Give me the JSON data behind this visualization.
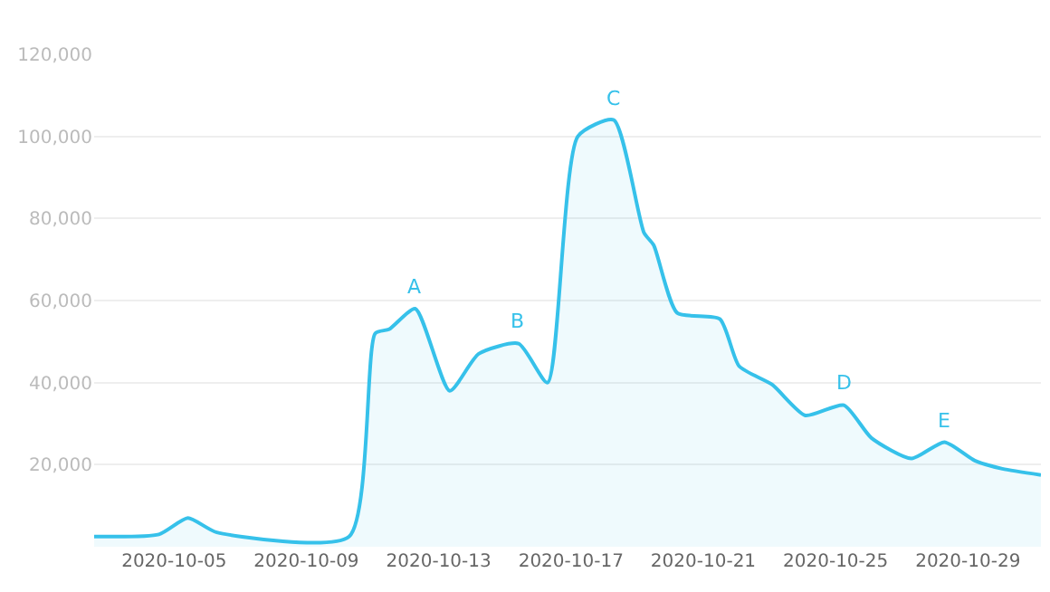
{
  "chart_data": {
    "type": "area",
    "x": [
      "2020-10-02T14:00",
      "2020-10-04T13:00",
      "2020-10-05T10:00",
      "2020-10-06T07:00",
      "2020-10-10T07:00",
      "2020-10-11T02:00",
      "2020-10-11T12:00",
      "2020-10-12T07:00",
      "2020-10-13T08:00",
      "2020-10-14T05:00",
      "2020-10-15T10:00",
      "2020-10-16T07:00",
      "2020-10-17T05:00",
      "2020-10-18T07:00",
      "2020-10-19T05:00",
      "2020-10-19T12:00",
      "2020-10-20T05:00",
      "2020-10-21T12:00",
      "2020-10-22T02:00",
      "2020-10-23T02:00",
      "2020-10-24T02:00",
      "2020-10-25T06:00",
      "2020-10-26T02:00",
      "2020-10-27T07:00",
      "2020-10-28T07:00",
      "2020-10-29T05:00",
      "2020-10-30T01:00",
      "2020-10-31T05:00"
    ],
    "series": [
      {
        "color": "#36c1ea",
        "values": [
          2500,
          3000,
          7000,
          3500,
          2500,
          52000,
          53000,
          58000,
          38000,
          47000,
          49500,
          40000,
          100000,
          104000,
          76500,
          73500,
          57000,
          55500,
          44000,
          39500,
          32000,
          34500,
          26500,
          21500,
          25500,
          21000,
          19000,
          17500
        ]
      }
    ],
    "xlim": [
      "2020-10-02T14:00",
      "2020-10-31T05:00"
    ],
    "xticks": [
      {
        "value": "2020-10-05",
        "label": "2020-10-05"
      },
      {
        "value": "2020-10-09",
        "label": "2020-10-09"
      },
      {
        "value": "2020-10-13",
        "label": "2020-10-13"
      },
      {
        "value": "2020-10-17",
        "label": "2020-10-17"
      },
      {
        "value": "2020-10-21",
        "label": "2020-10-21"
      },
      {
        "value": "2020-10-25",
        "label": "2020-10-25"
      },
      {
        "value": "2020-10-29",
        "label": "2020-10-29"
      }
    ],
    "ylim": [
      0,
      120000
    ],
    "yticks": [
      {
        "value": 20000,
        "label": "20,000"
      },
      {
        "value": 40000,
        "label": "40,000"
      },
      {
        "value": 60000,
        "label": "60,000"
      },
      {
        "value": 80000,
        "label": "80,000"
      },
      {
        "value": 100000,
        "label": "100,000"
      },
      {
        "value": 120000,
        "label": "120,000"
      }
    ],
    "grid": "y",
    "annotations": [
      {
        "text": "A",
        "x": "2020-10-12T07:00",
        "y": 58000
      },
      {
        "text": "B",
        "x": "2020-10-15T10:00",
        "y": 49500
      },
      {
        "text": "C",
        "x": "2020-10-18T07:00",
        "y": 104000
      },
      {
        "text": "D",
        "x": "2020-10-25T06:00",
        "y": 34500
      },
      {
        "text": "E",
        "x": "2020-10-28T07:00",
        "y": 25500
      }
    ]
  }
}
